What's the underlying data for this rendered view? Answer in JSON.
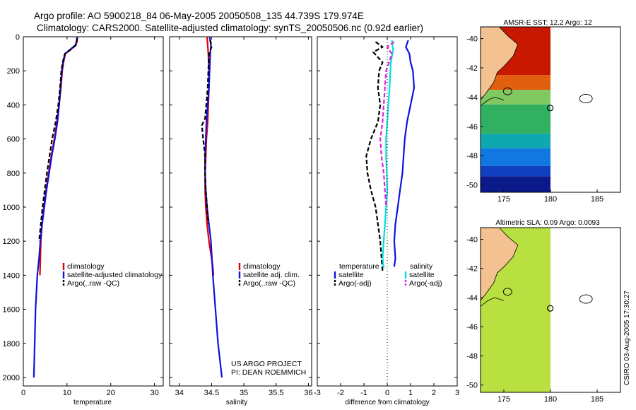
{
  "header": {
    "line1": "Argo profile: AO 5900218_84 06-May-2005 20050508_135 44.739S 179.974E",
    "line2": "Climatology: CARS2000. Satellite-adjusted climatology: synTS_20050506.nc (0.92d earlier)"
  },
  "credit": {
    "line1": "US ARGO PROJECT",
    "line2": "PI: DEAN ROEMMICH"
  },
  "side_stamp": "CSIRO 03-Aug-2005 17:30:27",
  "colors": {
    "climatology": "#e00000",
    "satellite": "#1010e0",
    "argo": "#000000",
    "sal_satellite": "#00e0e0",
    "sal_argo": "#e020e0",
    "deep_blue": "#0a1a8a",
    "land": "#f4c290",
    "sla_field": "#b8e040"
  },
  "chart_data": [
    {
      "type": "line",
      "panel": "temperature",
      "xlabel": "temperature",
      "ylabel": "",
      "xlim": [
        0,
        32
      ],
      "ylim": [
        2050,
        0
      ],
      "xticks": [
        "0",
        "10",
        "20",
        "30"
      ],
      "xtick_values": [
        0,
        10,
        20,
        30
      ],
      "yticks": [
        "0",
        "200",
        "400",
        "600",
        "800",
        "1000",
        "1200",
        "1400",
        "1600",
        "1800",
        "2000"
      ],
      "ytick_values": [
        0,
        200,
        400,
        600,
        800,
        1000,
        1200,
        1400,
        1600,
        1800,
        2000
      ],
      "legend": {
        "placement": "lower-right",
        "items": [
          "climatology",
          "satellite-adjusted climatology",
          "Argo(..raw -QC)"
        ]
      },
      "series": [
        {
          "name": "climatology",
          "style": "solid",
          "color": "#e00000",
          "x": [
            12.4,
            12.3,
            12.0,
            10.8,
            9.6,
            9.2,
            8.9,
            8.6,
            8.2,
            7.7,
            7.1,
            6.4,
            5.8,
            5.2,
            4.7,
            4.3,
            4.0,
            3.8
          ],
          "y": [
            0,
            25,
            50,
            75,
            100,
            150,
            200,
            300,
            400,
            500,
            600,
            700,
            800,
            900,
            1000,
            1100,
            1200,
            1400
          ]
        },
        {
          "name": "satellite-adjusted climatology",
          "style": "solid",
          "color": "#1010e0",
          "x": [
            12.3,
            12.2,
            11.9,
            10.7,
            9.5,
            9.1,
            8.8,
            8.5,
            8.2,
            7.8,
            7.2,
            6.5,
            5.9,
            5.3,
            4.8,
            4.3,
            3.9,
            3.6,
            3.2,
            2.8,
            2.6,
            2.5,
            2.4
          ],
          "y": [
            0,
            25,
            50,
            75,
            100,
            150,
            200,
            300,
            400,
            500,
            600,
            700,
            800,
            900,
            1000,
            1100,
            1200,
            1300,
            1400,
            1600,
            1800,
            1900,
            2000
          ]
        },
        {
          "name": "Argo(..raw -QC)",
          "style": "dashed",
          "color": "#000000",
          "x": [
            12.3,
            12.0,
            10.6,
            9.5,
            9.0,
            8.7,
            8.4,
            8.0,
            7.4,
            6.6,
            6.0,
            5.4,
            4.9,
            4.4,
            4.0,
            3.6
          ],
          "y": [
            10,
            50,
            80,
            100,
            150,
            200,
            300,
            400,
            500,
            600,
            700,
            800,
            900,
            1000,
            1100,
            1200
          ]
        }
      ]
    },
    {
      "type": "line",
      "panel": "salinity",
      "xlabel": "salinity",
      "ylabel": "",
      "xlim": [
        33.85,
        36.05
      ],
      "ylim": [
        2050,
        0
      ],
      "xticks": [
        "34",
        "34.5",
        "35",
        "35.5",
        "36"
      ],
      "xtick_values": [
        34,
        34.5,
        35,
        35.5,
        36
      ],
      "legend": {
        "placement": "lower-right",
        "items": [
          "climatology",
          "satellite adj. clim.",
          "Argo(..raw -QC)"
        ]
      },
      "series": [
        {
          "name": "climatology",
          "style": "solid",
          "color": "#e00000",
          "x": [
            34.43,
            34.44,
            34.45,
            34.46,
            34.46,
            34.45,
            34.44,
            34.42,
            34.41,
            34.4,
            34.4,
            34.41,
            34.43,
            34.46,
            34.5,
            34.52,
            34.53
          ],
          "y": [
            0,
            50,
            100,
            200,
            300,
            400,
            500,
            600,
            700,
            800,
            900,
            1000,
            1100,
            1200,
            1300,
            1350,
            1400
          ]
        },
        {
          "name": "satellite adj. clim.",
          "style": "solid",
          "color": "#1010e0",
          "x": [
            34.47,
            34.49,
            34.48,
            34.47,
            34.46,
            34.44,
            34.42,
            34.41,
            34.4,
            34.4,
            34.41,
            34.43,
            34.46,
            34.49,
            34.52,
            34.56,
            34.6,
            34.63,
            34.66
          ],
          "y": [
            0,
            50,
            100,
            200,
            300,
            400,
            500,
            600,
            700,
            800,
            900,
            1000,
            1100,
            1200,
            1400,
            1600,
            1800,
            1900,
            2000
          ]
        },
        {
          "name": "Argo(..raw -QC)",
          "style": "dashed",
          "color": "#000000",
          "x": [
            34.48,
            34.5,
            34.46,
            34.44,
            34.4,
            34.35,
            34.37,
            34.4,
            34.4,
            34.41,
            34.43,
            34.45
          ],
          "y": [
            20,
            60,
            100,
            300,
            480,
            520,
            600,
            700,
            800,
            900,
            1000,
            1100
          ]
        }
      ]
    },
    {
      "type": "line",
      "panel": "difference",
      "xlabel": "difference from climatology",
      "ylabel": "",
      "xlim": [
        -3,
        3
      ],
      "ylim": [
        2050,
        0
      ],
      "xticks": [
        "-3",
        "-2",
        "-1",
        "0",
        "1",
        "2",
        "3"
      ],
      "xtick_values": [
        -3,
        -2,
        -1,
        0,
        1,
        2,
        3
      ],
      "legend": {
        "placement": "lower-center",
        "columns": [
          {
            "title": "temperature",
            "items": [
              "satellite",
              "Argo(-adj)"
            ]
          },
          {
            "title": "salinity",
            "items": [
              "satellite",
              "Argo(-adj)"
            ]
          }
        ]
      },
      "series": [
        {
          "name": "temperature satellite",
          "style": "solid",
          "color": "#1010e0",
          "x": [
            0.9,
            0.8,
            0.95,
            1.0,
            1.1,
            1.15,
            1.0,
            0.85,
            0.75,
            0.7,
            0.65,
            0.55,
            0.45,
            0.35,
            0.3,
            0.35,
            0.3
          ],
          "y": [
            20,
            60,
            100,
            150,
            200,
            300,
            400,
            500,
            600,
            700,
            800,
            900,
            1000,
            1100,
            1200,
            1300,
            1350
          ]
        },
        {
          "name": "temperature Argo(-adj)",
          "style": "dashed",
          "color": "#000000",
          "x": [
            -0.5,
            -0.2,
            -0.6,
            -0.2,
            -0.35,
            -0.4,
            -0.3,
            -0.4,
            -0.7,
            -0.9,
            -0.85,
            -0.7,
            -0.5,
            -0.4,
            -0.3,
            -0.2
          ],
          "y": [
            30,
            60,
            90,
            150,
            200,
            300,
            400,
            500,
            600,
            700,
            800,
            900,
            1000,
            1100,
            1200,
            1380
          ]
        },
        {
          "name": "salinity satellite",
          "style": "solid",
          "color": "#00e0e0",
          "x": [
            0.2,
            0.25,
            0.15,
            0.1,
            0.05,
            0.0,
            -0.05,
            -0.05,
            -0.02,
            0.0,
            -0.05,
            -0.1,
            -0.15,
            -0.2,
            -0.15
          ],
          "y": [
            20,
            80,
            150,
            300,
            400,
            500,
            600,
            700,
            800,
            900,
            1000,
            1100,
            1200,
            1300,
            1360
          ]
        },
        {
          "name": "salinity Argo(-adj)",
          "style": "dashed",
          "color": "#e020e0",
          "x": [
            0.3,
            0.0,
            0.2,
            -0.05,
            -0.1,
            -0.15,
            -0.2,
            -0.3,
            -0.25,
            -0.15,
            -0.1,
            -0.05
          ],
          "y": [
            30,
            60,
            100,
            200,
            300,
            400,
            500,
            600,
            700,
            800,
            900,
            1000
          ]
        },
        {
          "name": "zero line",
          "style": "dotted",
          "color": "#000000",
          "x": [
            0,
            0
          ],
          "y": [
            0,
            2050
          ]
        }
      ]
    },
    {
      "type": "heatmap",
      "panel": "sst_map",
      "title": "AMSR-E SST: 12.2 Argo: 12",
      "xlim": [
        172.5,
        187.5
      ],
      "ylim": [
        -50.5,
        -39.2
      ],
      "xticks": [
        "175",
        "180",
        "185"
      ],
      "xtick_values": [
        175,
        180,
        185
      ],
      "yticks": [
        "-40",
        "-42",
        "-44",
        "-46",
        "-48",
        "-50"
      ],
      "ytick_values": [
        -40,
        -42,
        -44,
        -46,
        -48,
        -50
      ],
      "argo_position": {
        "lon": 179.974,
        "lat": -44.739
      },
      "field_lon_range": [
        172.5,
        180
      ],
      "color_bands": [
        {
          "lat_top": -39.2,
          "lat_bottom": -42.5,
          "color": "#c81800"
        },
        {
          "lat_top": -42.5,
          "lat_bottom": -43.5,
          "color": "#e06010"
        },
        {
          "lat_top": -43.5,
          "lat_bottom": -44.5,
          "color": "#80c860"
        },
        {
          "lat_top": -44.5,
          "lat_bottom": -46.5,
          "color": "#30b060"
        },
        {
          "lat_top": -46.5,
          "lat_bottom": -47.5,
          "color": "#10a8b0"
        },
        {
          "lat_top": -47.5,
          "lat_bottom": -48.7,
          "color": "#1078e0"
        },
        {
          "lat_top": -48.7,
          "lat_bottom": -49.4,
          "color": "#1040c0"
        },
        {
          "lat_top": -49.4,
          "lat_bottom": -50.5,
          "color": "#0a1a8a"
        }
      ]
    },
    {
      "type": "heatmap",
      "panel": "sla_map",
      "title": "Altimetric SLA: 0.09 Argo: 0.0093",
      "xlim": [
        172.5,
        187.5
      ],
      "ylim": [
        -50.5,
        -39.2
      ],
      "xticks": [
        "175",
        "180",
        "185"
      ],
      "xtick_values": [
        175,
        180,
        185
      ],
      "yticks": [
        "-40",
        "-42",
        "-44",
        "-46",
        "-48",
        "-50"
      ],
      "ytick_values": [
        -40,
        -42,
        -44,
        -46,
        -48,
        -50
      ],
      "argo_position": {
        "lon": 179.974,
        "lat": -44.739
      },
      "field_lon_range": [
        172.5,
        180
      ],
      "color_bands": [
        {
          "lat_top": -39.2,
          "lat_bottom": -50.5,
          "color": "#b8e040"
        }
      ]
    }
  ]
}
